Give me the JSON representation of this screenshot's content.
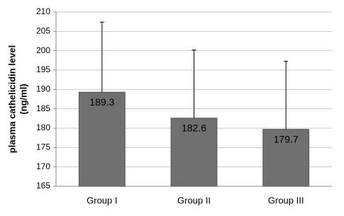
{
  "chart_data": {
    "type": "bar",
    "y_label": [
      "plasma cathelicidin level",
      "(ng/ml)"
    ],
    "categories": [
      "Group I",
      "Group II",
      "Group III"
    ],
    "values": [
      189.3,
      182.6,
      179.7
    ],
    "errors": [
      18.1,
      17.6,
      17.6
    ],
    "color": "#707070",
    "ylim": [
      165,
      210
    ],
    "yticks": [
      165,
      170,
      175,
      180,
      185,
      190,
      195,
      200,
      205,
      210
    ],
    "grid": true
  }
}
